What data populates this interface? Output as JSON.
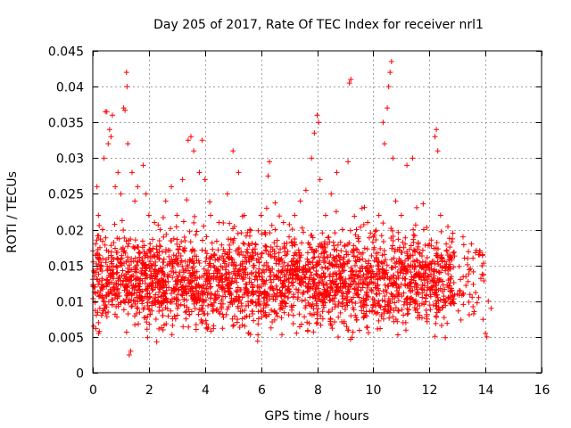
{
  "chart_data": {
    "type": "scatter",
    "title": "Day 205 of 2017, Rate Of TEC Index for receiver nrl1",
    "xlabel": "GPS time / hours",
    "ylabel": "ROTI / TECUs",
    "xlim": [
      0,
      16
    ],
    "ylim": [
      0,
      0.045
    ],
    "x_ticks": [
      0,
      2,
      4,
      6,
      8,
      10,
      12,
      14,
      16
    ],
    "x_tick_labels": [
      "0",
      "2",
      "4",
      "6",
      "8",
      "10",
      "12",
      "14",
      "16"
    ],
    "y_ticks": [
      0,
      0.005,
      0.01,
      0.015,
      0.02,
      0.025,
      0.03,
      0.035,
      0.04,
      0.045
    ],
    "y_tick_labels": [
      "0",
      "0.005",
      "0.01",
      "0.015",
      "0.02",
      "0.025",
      "0.03",
      "0.035",
      "0.04",
      "0.045"
    ],
    "grid": true,
    "marker": "plus",
    "color": "#ff0000",
    "series": [
      {
        "name": "ROTI",
        "note": "dense band of thousands of points ~0.005-0.02 from 0 to ~12.9 h; representative points plus visible outliers",
        "points": [
          [
            0.05,
            0.012
          ],
          [
            0.1,
            0.018
          ],
          [
            0.15,
            0.026
          ],
          [
            0.2,
            0.022
          ],
          [
            0.25,
            0.009
          ],
          [
            0.3,
            0.015
          ],
          [
            0.35,
            0.02
          ],
          [
            0.4,
            0.03
          ],
          [
            0.45,
            0.0365
          ],
          [
            0.5,
            0.0365
          ],
          [
            0.55,
            0.032
          ],
          [
            0.6,
            0.034
          ],
          [
            0.65,
            0.033
          ],
          [
            0.7,
            0.036
          ],
          [
            0.8,
            0.026
          ],
          [
            0.9,
            0.028
          ],
          [
            1.0,
            0.025
          ],
          [
            1.1,
            0.037
          ],
          [
            1.15,
            0.0367
          ],
          [
            1.2,
            0.042
          ],
          [
            1.22,
            0.04
          ],
          [
            1.25,
            0.032
          ],
          [
            1.3,
            0.0025
          ],
          [
            1.35,
            0.003
          ],
          [
            1.4,
            0.028
          ],
          [
            1.5,
            0.024
          ],
          [
            1.6,
            0.026
          ],
          [
            1.8,
            0.029
          ],
          [
            1.9,
            0.025
          ],
          [
            2.0,
            0.022
          ],
          [
            2.2,
            0.021
          ],
          [
            2.4,
            0.02
          ],
          [
            2.6,
            0.024
          ],
          [
            2.8,
            0.026
          ],
          [
            3.0,
            0.022
          ],
          [
            3.2,
            0.027
          ],
          [
            3.4,
            0.0325
          ],
          [
            3.5,
            0.033
          ],
          [
            3.6,
            0.031
          ],
          [
            3.8,
            0.028
          ],
          [
            3.9,
            0.0325
          ],
          [
            4.0,
            0.027
          ],
          [
            4.2,
            0.022
          ],
          [
            4.5,
            0.021
          ],
          [
            4.8,
            0.025
          ],
          [
            5.0,
            0.031
          ],
          [
            5.2,
            0.028
          ],
          [
            5.4,
            0.022
          ],
          [
            5.6,
            0.02
          ],
          [
            5.8,
            0.018
          ],
          [
            6.0,
            0.022
          ],
          [
            6.2,
            0.023
          ],
          [
            6.25,
            0.0275
          ],
          [
            6.3,
            0.0295
          ],
          [
            6.5,
            0.02
          ],
          [
            6.8,
            0.021
          ],
          [
            7.0,
            0.019
          ],
          [
            7.2,
            0.022
          ],
          [
            7.4,
            0.024
          ],
          [
            7.6,
            0.0255
          ],
          [
            7.8,
            0.03
          ],
          [
            7.9,
            0.0335
          ],
          [
            8.0,
            0.036
          ],
          [
            8.05,
            0.035
          ],
          [
            8.1,
            0.027
          ],
          [
            8.3,
            0.022
          ],
          [
            8.5,
            0.025
          ],
          [
            8.7,
            0.028
          ],
          [
            8.9,
            0.02
          ],
          [
            9.1,
            0.0295
          ],
          [
            9.15,
            0.0405
          ],
          [
            9.2,
            0.041
          ],
          [
            9.4,
            0.02
          ],
          [
            9.6,
            0.023
          ],
          [
            9.8,
            0.021
          ],
          [
            10.0,
            0.019
          ],
          [
            10.2,
            0.022
          ],
          [
            10.35,
            0.035
          ],
          [
            10.4,
            0.032
          ],
          [
            10.5,
            0.037
          ],
          [
            10.55,
            0.04
          ],
          [
            10.6,
            0.042
          ],
          [
            10.65,
            0.0435
          ],
          [
            10.7,
            0.03
          ],
          [
            10.8,
            0.024
          ],
          [
            11.0,
            0.022
          ],
          [
            11.2,
            0.029
          ],
          [
            11.4,
            0.03
          ],
          [
            11.6,
            0.018
          ],
          [
            11.8,
            0.02
          ],
          [
            12.0,
            0.018
          ],
          [
            12.2,
            0.033
          ],
          [
            12.25,
            0.034
          ],
          [
            12.3,
            0.031
          ],
          [
            12.4,
            0.022
          ],
          [
            12.6,
            0.018
          ],
          [
            12.8,
            0.016
          ],
          [
            13.0,
            0.011
          ],
          [
            13.2,
            0.019
          ],
          [
            13.5,
            0.018
          ],
          [
            13.8,
            0.017
          ],
          [
            13.9,
            0.0165
          ],
          [
            14.0,
            0.0055
          ],
          [
            14.05,
            0.005
          ],
          [
            14.1,
            0.01
          ],
          [
            14.2,
            0.009
          ]
        ]
      }
    ]
  }
}
